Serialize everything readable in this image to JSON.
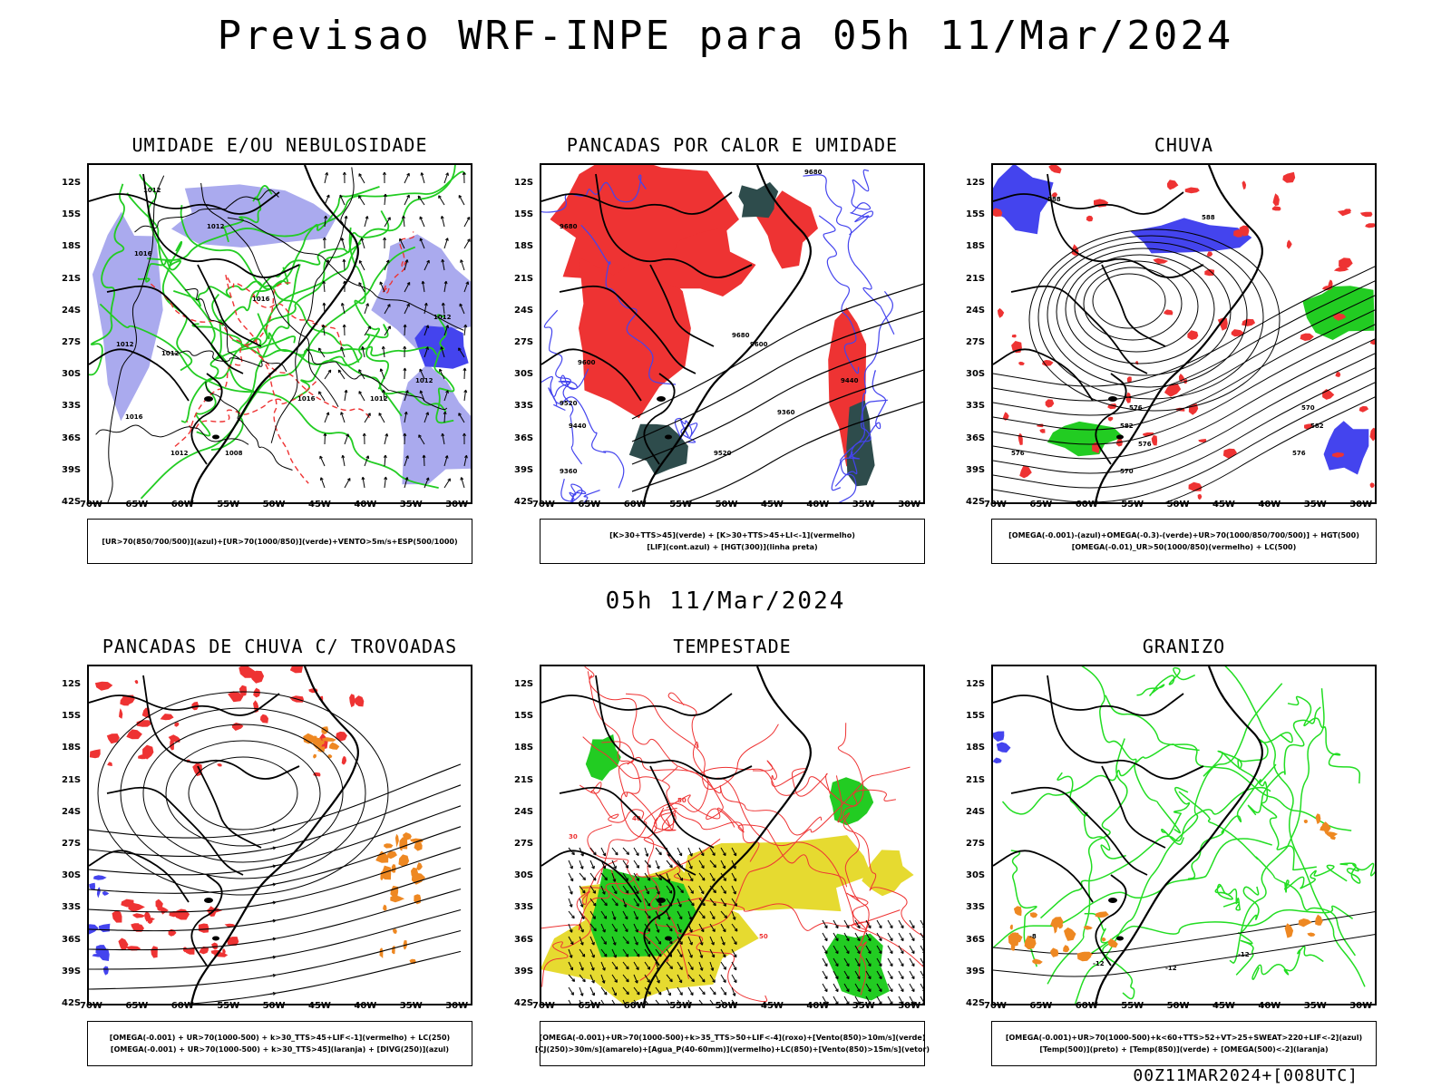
{
  "header": {
    "title": "Previsao WRF-INPE  para 05h 11/Mar/2024",
    "mid_title": "05h 11/Mar/2024",
    "stamp": "00Z11MAR2024+[008UTC]"
  },
  "axes": {
    "lat_labels": [
      "12S",
      "15S",
      "18S",
      "21S",
      "24S",
      "27S",
      "30S",
      "33S",
      "36S",
      "39S",
      "42S"
    ],
    "lon_labels": [
      "70W",
      "65W",
      "60W",
      "55W",
      "50W",
      "45W",
      "40W",
      "35W",
      "30W"
    ]
  },
  "colors": {
    "moisture_blue": "#aaaaee",
    "deep_blue": "#4444ee",
    "green": "#22cc22",
    "red": "#ee3333",
    "dark_teal": "#2e4c4c",
    "orange": "#ee8822",
    "yellow": "#e6da30",
    "light_green_contour": "#22dd22"
  },
  "panels": [
    {
      "id": "umidade",
      "title": "UMIDADE E/OU NEBULOSIDADE",
      "contour_labels": [
        "1012",
        "1012",
        "1016",
        "1016",
        "1012",
        "1012",
        "1012",
        "1016",
        "1016",
        "1012",
        "1012",
        "1008",
        "1012"
      ],
      "legend": [
        "[UR>70(850/700/500)](azul)+[UR>70(1000/850)](verde)+VENTO>5m/s+ESP(500/1000)"
      ]
    },
    {
      "id": "pancadas-calor",
      "title": "PANCADAS POR CALOR E UMIDADE",
      "contour_labels": [
        "9680",
        "9680",
        "9600",
        "9520",
        "9440",
        "9360",
        "9520",
        "9440",
        "9360",
        "9600",
        "9680"
      ],
      "legend": [
        "[K>30+TTS>45](verde) + [K>30+TTS>45+LI<-1](vermelho)",
        "[LIF](cont.azul) + [HGT(300)](linha preta)"
      ]
    },
    {
      "id": "chuva",
      "title": "CHUVA",
      "contour_labels": [
        "588",
        "588",
        "582",
        "576",
        "570",
        "576",
        "582",
        "576",
        "570",
        "576"
      ],
      "legend": [
        "[OMEGA(-0.001)-(azul)+OMEGA(-0.3)-(verde)+UR>70(1000/850/700/500)] + HGT(500)",
        "[OMEGA(-0.01)_UR>50(1000/850)(vermelho) + LC(500)"
      ]
    },
    {
      "id": "pancadas-trovoadas",
      "title": "PANCADAS DE CHUVA C/ TROVOADAS",
      "contour_labels": [],
      "legend": [
        "[OMEGA(-0.001) + UR>70(1000-500) + k>30_TTS>45+LIF<-1](vermelho) + LC(250)",
        "[OMEGA(-0.001) + UR>70(1000-500) + k>30_TTS>45](laranja) + [DIVG(250)](azul)"
      ]
    },
    {
      "id": "tempestade",
      "title": "TEMPESTADE",
      "contour_labels": [
        "50",
        "40",
        "30",
        "50"
      ],
      "legend": [
        "[OMEGA(-0.001)+UR>70(1000-500)+k>35_TTS>50+LIF<-4](roxo)+[Vento(850)>10m/s](verde)",
        "[CJ(250)>30m/s](amarelo)+[Agua_P(40-60mm)](vermelho)+LC(850)+[Vento(850)>15m/s](vetor)"
      ]
    },
    {
      "id": "granizo",
      "title": "GRANIZO",
      "contour_labels": [
        "-12",
        "-12",
        "-12",
        "-8"
      ],
      "legend": [
        "[OMEGA(-0.001)+UR>70(1000-500)+k<60+TTS>52+VT>25+SWEAT>220+LIF<-2](azul)",
        "[Temp(500)](preto) + [Temp(850)](verde) + [OMEGA(500)<-2](laranja)"
      ]
    }
  ]
}
